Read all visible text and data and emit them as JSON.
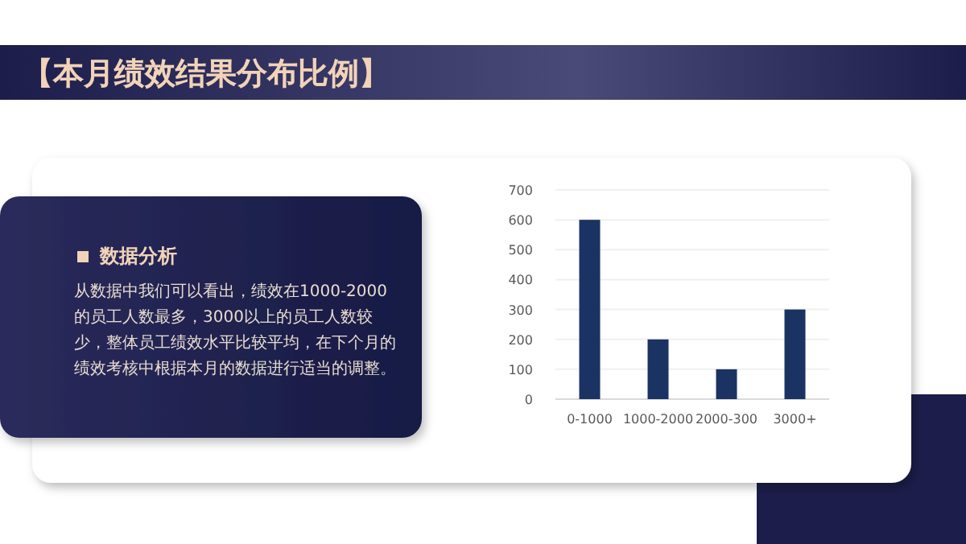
{
  "chart_data": {
    "type": "bar",
    "title": "【本月绩效结果分布比例】",
    "categories": [
      "0-1000",
      "1000-2000",
      "2000-300",
      "3000+"
    ],
    "values": [
      600,
      200,
      100,
      300
    ],
    "color": "#1b3362",
    "ylim": [
      0,
      700
    ],
    "yticks": [
      0,
      100,
      200,
      300,
      400,
      500,
      600,
      700
    ],
    "grid": "y",
    "annotations": [
      "数据分析",
      "从数据中我们可以看出，绩效在1000-2000的员工人数最多，3000以上的员工人数较少，整体员工绩效水平比较平均，在下个月的绩效考核中根据本月的数据进行适当的调整。"
    ]
  }
}
